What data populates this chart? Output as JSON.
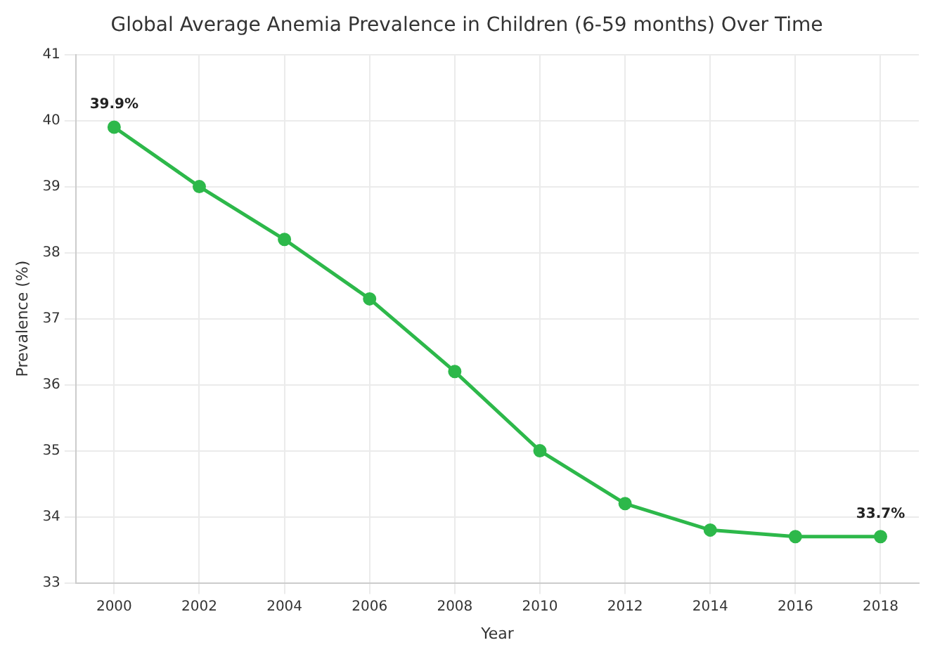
{
  "chart_data": {
    "type": "line",
    "title": "Global Average Anemia Prevalence in Children (6-59 months) Over Time",
    "xlabel": "Year",
    "ylabel": "Prevalence (%)",
    "x": [
      2000,
      2002,
      2004,
      2006,
      2008,
      2010,
      2012,
      2014,
      2016,
      2018
    ],
    "series": [
      {
        "color": "#2db84a",
        "values": [
          39.9,
          39.0,
          38.2,
          37.3,
          36.2,
          35.0,
          34.2,
          33.8,
          33.7,
          33.7
        ],
        "value_labels": [
          "39.9%",
          null,
          null,
          null,
          null,
          null,
          null,
          null,
          null,
          "33.7%"
        ]
      }
    ],
    "xlim": [
      1999.1,
      2018.9
    ],
    "xticks": [
      2000,
      2002,
      2004,
      2006,
      2008,
      2010,
      2012,
      2014,
      2016,
      2018
    ],
    "ylim": [
      33,
      41
    ],
    "yticks": [
      33,
      34,
      35,
      36,
      37,
      38,
      39,
      40,
      41
    ],
    "grid": true,
    "marker": "circle",
    "line_style": "solid",
    "legend": false
  }
}
